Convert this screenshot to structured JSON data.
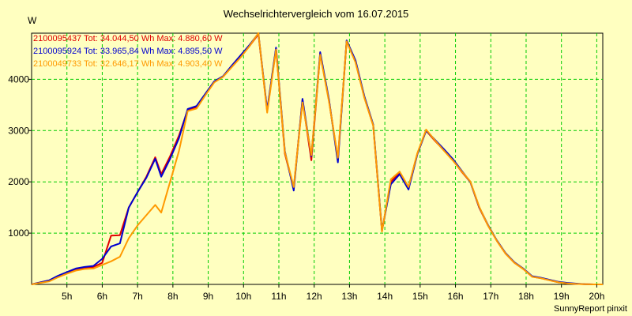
{
  "chart_data": {
    "type": "line",
    "title": "Wechselrichtervergleich vom 16.07.2015",
    "ylabel": "W",
    "xlabel": "",
    "xlim": [
      4.0,
      20.17
    ],
    "ylim": [
      0,
      4900
    ],
    "x_ticks": [
      5,
      6,
      7,
      8,
      9,
      10,
      11,
      12,
      13,
      14,
      15,
      16,
      17,
      18,
      19,
      20
    ],
    "x_tick_labels": [
      "5h",
      "6h",
      "7h",
      "8h",
      "9h",
      "10h",
      "11h",
      "12h",
      "13h",
      "14h",
      "15h",
      "16h",
      "17h",
      "18h",
      "19h",
      "20h"
    ],
    "y_ticks": [
      1000,
      2000,
      3000,
      4000
    ],
    "y_tick_labels": [
      "1000",
      "2000",
      "3000",
      "4000"
    ],
    "grid": true,
    "legend_position": "top-left",
    "footer": "SunnyReport pinxit",
    "series": [
      {
        "name": "2100095437",
        "legend": "2100095437 Tot: 34.044,50 Wh Max: 4.880,60 W",
        "color": "#e00000",
        "x": [
          4.0,
          4.5,
          4.75,
          5.0,
          5.25,
          5.5,
          5.75,
          6.0,
          6.25,
          6.5,
          6.75,
          7.0,
          7.25,
          7.5,
          7.67,
          7.92,
          8.17,
          8.42,
          8.67,
          8.92,
          9.17,
          9.42,
          9.67,
          9.92,
          10.17,
          10.42,
          10.67,
          10.92,
          11.17,
          11.42,
          11.67,
          11.92,
          12.17,
          12.42,
          12.67,
          12.92,
          13.17,
          13.42,
          13.67,
          13.92,
          14.17,
          14.42,
          14.67,
          14.92,
          15.17,
          15.42,
          15.67,
          15.92,
          16.17,
          16.42,
          16.67,
          16.92,
          17.17,
          17.42,
          17.67,
          17.92,
          18.17,
          18.42,
          18.67,
          18.92,
          19.17,
          19.42,
          19.67,
          19.92,
          20.17
        ],
        "values": [
          0,
          80,
          150,
          220,
          280,
          330,
          340,
          420,
          950,
          960,
          1500,
          1800,
          2100,
          2480,
          2150,
          2500,
          2900,
          3400,
          3450,
          3700,
          3950,
          4050,
          4250,
          4450,
          4650,
          4880,
          3380,
          4600,
          2550,
          1880,
          3600,
          2420,
          4500,
          3580,
          2450,
          4750,
          4350,
          3650,
          3100,
          1040,
          2000,
          2180,
          1900,
          2550,
          3000,
          2800,
          2620,
          2430,
          2200,
          2000,
          1500,
          1150,
          850,
          600,
          420,
          300,
          150,
          120,
          80,
          40,
          20,
          10,
          5,
          0,
          0
        ]
      },
      {
        "name": "2100095924",
        "legend": "2100095924 Tot: 33.965,84 Wh Max: 4.895,50 W",
        "color": "#0000d0",
        "x": [
          4.0,
          4.5,
          4.75,
          5.0,
          5.25,
          5.5,
          5.75,
          6.0,
          6.25,
          6.5,
          6.75,
          7.0,
          7.25,
          7.5,
          7.67,
          7.92,
          8.17,
          8.42,
          8.67,
          8.92,
          9.17,
          9.42,
          9.67,
          9.92,
          10.17,
          10.42,
          10.67,
          10.92,
          11.17,
          11.42,
          11.67,
          11.92,
          12.17,
          12.42,
          12.67,
          12.92,
          13.17,
          13.42,
          13.67,
          13.92,
          14.17,
          14.42,
          14.67,
          14.92,
          15.17,
          15.42,
          15.67,
          15.92,
          16.17,
          16.42,
          16.67,
          16.92,
          17.17,
          17.42,
          17.67,
          17.92,
          18.17,
          18.42,
          18.67,
          18.92,
          19.17,
          19.42,
          19.67,
          19.92,
          20.17
        ],
        "values": [
          0,
          80,
          170,
          240,
          310,
          340,
          360,
          500,
          740,
          800,
          1500,
          1800,
          2080,
          2450,
          2100,
          2450,
          2850,
          3420,
          3480,
          3720,
          3960,
          4060,
          4270,
          4470,
          4670,
          4895,
          3400,
          4620,
          2600,
          1830,
          3620,
          2500,
          4530,
          3600,
          2380,
          4760,
          4370,
          3670,
          3120,
          1050,
          1950,
          2150,
          1850,
          2540,
          3000,
          2820,
          2640,
          2450,
          2220,
          2000,
          1510,
          1160,
          860,
          610,
          430,
          310,
          160,
          130,
          90,
          50,
          30,
          15,
          5,
          0,
          0
        ]
      },
      {
        "name": "2100049733",
        "legend": "2100049733 Tot: 32.646,17 Wh Max: 4.903,40 W",
        "color": "#ff9900",
        "x": [
          4.0,
          4.5,
          4.75,
          5.0,
          5.25,
          5.5,
          5.75,
          6.0,
          6.25,
          6.5,
          6.75,
          7.0,
          7.25,
          7.5,
          7.67,
          7.92,
          8.17,
          8.42,
          8.67,
          8.92,
          9.17,
          9.42,
          9.67,
          9.92,
          10.17,
          10.42,
          10.67,
          10.92,
          11.17,
          11.42,
          11.67,
          11.92,
          12.17,
          12.42,
          12.67,
          12.92,
          13.17,
          13.42,
          13.67,
          13.92,
          14.17,
          14.42,
          14.67,
          14.92,
          15.17,
          15.42,
          15.67,
          15.92,
          16.17,
          16.42,
          16.67,
          16.92,
          17.17,
          17.42,
          17.67,
          17.92,
          18.17,
          18.42,
          18.67,
          18.92,
          19.17,
          19.42,
          19.67,
          19.92,
          20.17
        ],
        "values": [
          0,
          60,
          140,
          210,
          270,
          300,
          310,
          380,
          450,
          540,
          900,
          1150,
          1350,
          1550,
          1400,
          2000,
          2600,
          3380,
          3430,
          3690,
          3940,
          4050,
          4240,
          4430,
          4650,
          4903,
          3350,
          4580,
          2580,
          1900,
          3550,
          2520,
          4480,
          3560,
          2470,
          4740,
          4330,
          3640,
          3100,
          1030,
          2050,
          2200,
          1900,
          2560,
          3020,
          2810,
          2610,
          2420,
          2210,
          2010,
          1520,
          1150,
          850,
          600,
          420,
          300,
          150,
          120,
          80,
          40,
          20,
          10,
          5,
          0,
          0
        ]
      }
    ]
  }
}
